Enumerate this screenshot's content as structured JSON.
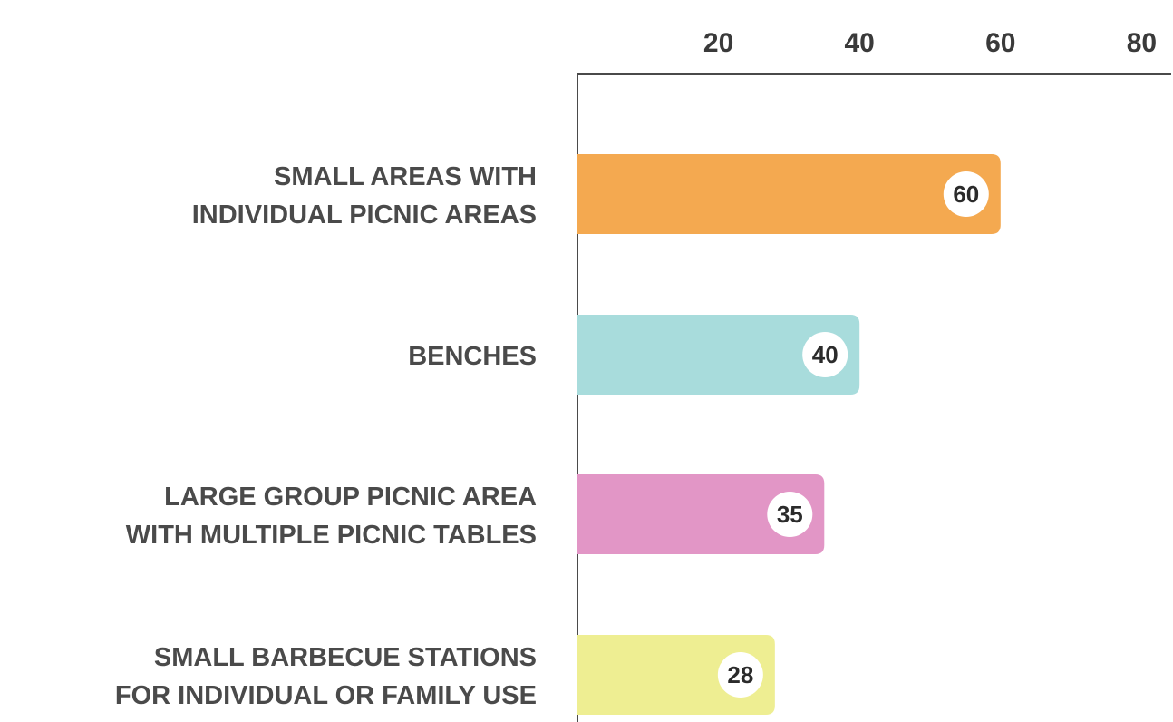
{
  "chart_data": {
    "type": "bar",
    "orientation": "horizontal",
    "categories": [
      [
        "SMALL AREAS WITH",
        "INDIVIDUAL PICNIC AREAS"
      ],
      [
        "BENCHES"
      ],
      [
        "LARGE GROUP PICNIC AREA",
        "WITH MULTIPLE PICNIC TABLES"
      ],
      [
        "SMALL BARBECUE STATIONS",
        "FOR INDIVIDUAL OR FAMILY USE"
      ]
    ],
    "values": [
      60,
      40,
      35,
      28
    ],
    "value_labels": [
      "60",
      "40",
      "35",
      "28"
    ],
    "colors": [
      "#f4a950",
      "#a8dcdc",
      "#e296c6",
      "#eeee92"
    ],
    "x_ticks": [
      20,
      40,
      60,
      80
    ],
    "x_tick_labels": [
      "20",
      "40",
      "60",
      "80"
    ],
    "xlim": [
      0,
      80
    ],
    "x_axis_position": "top",
    "grid": false,
    "legend": "none"
  }
}
